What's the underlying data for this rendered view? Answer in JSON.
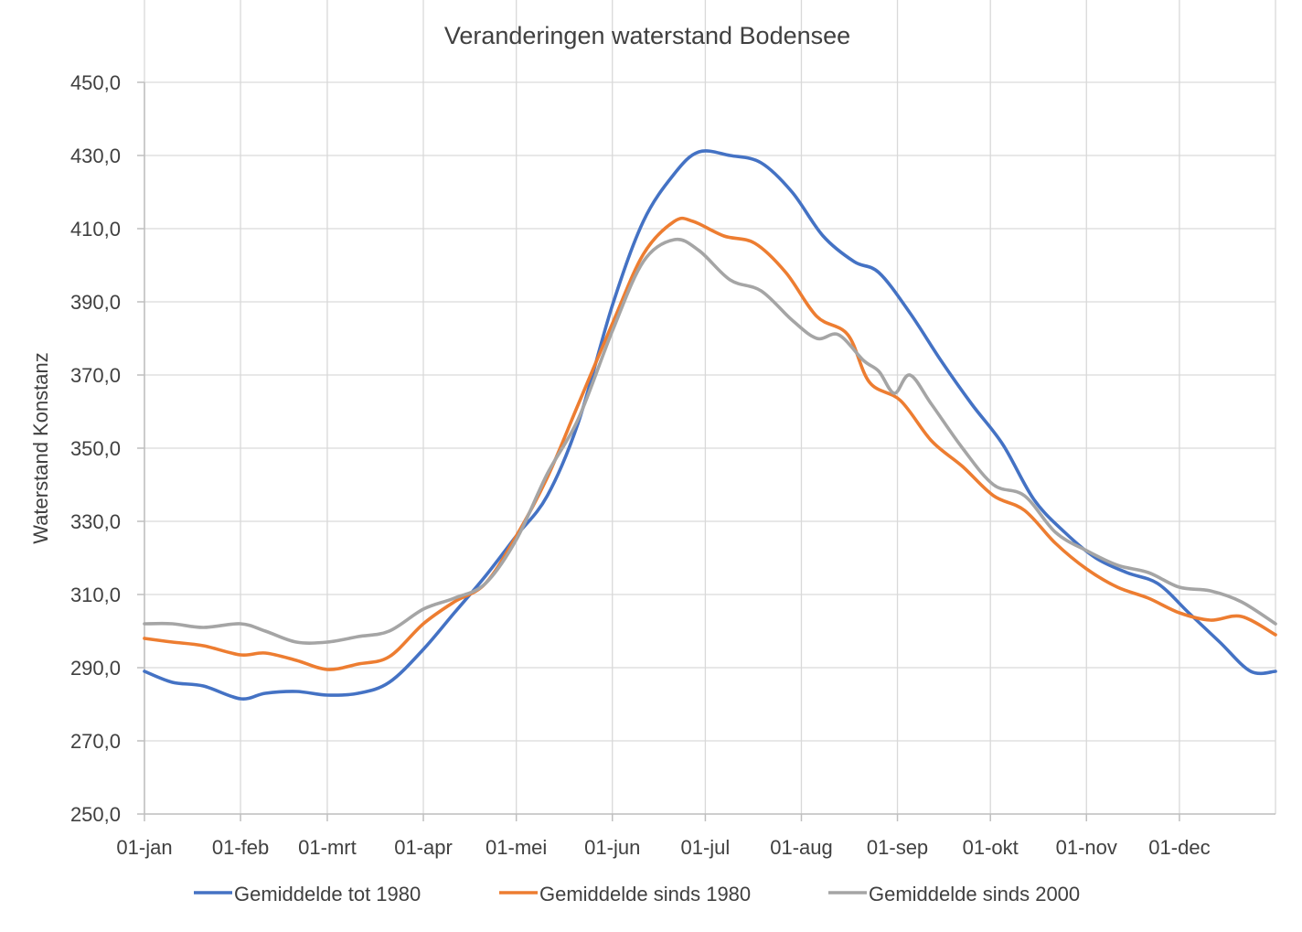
{
  "chart_data": {
    "type": "line",
    "title": "Veranderingen waterstand Bodensee",
    "xlabel": "",
    "ylabel": "Waterstand Konstanz",
    "x_unit": "day of year",
    "xlim": [
      1,
      366
    ],
    "ylim": [
      250,
      450
    ],
    "y_ticks": [
      "250,0",
      "270,0",
      "290,0",
      "310,0",
      "330,0",
      "350,0",
      "370,0",
      "390,0",
      "410,0",
      "430,0",
      "450,0"
    ],
    "x_ticks": [
      {
        "day": 1,
        "label": "01-jan"
      },
      {
        "day": 32,
        "label": "01-feb"
      },
      {
        "day": 60,
        "label": "01-mrt"
      },
      {
        "day": 91,
        "label": "01-apr"
      },
      {
        "day": 121,
        "label": "01-mei"
      },
      {
        "day": 152,
        "label": "01-jun"
      },
      {
        "day": 182,
        "label": "01-jul"
      },
      {
        "day": 213,
        "label": "01-aug"
      },
      {
        "day": 244,
        "label": "01-sep"
      },
      {
        "day": 274,
        "label": "01-okt"
      },
      {
        "day": 305,
        "label": "01-nov"
      },
      {
        "day": 335,
        "label": "01-dec"
      }
    ],
    "grid": true,
    "legend_position": "bottom",
    "series": [
      {
        "name": "Gemiddelde tot 1980",
        "color": "#4472C4",
        "points": [
          [
            1,
            289
          ],
          [
            10,
            286
          ],
          [
            20,
            285
          ],
          [
            32,
            281.5
          ],
          [
            40,
            283
          ],
          [
            50,
            283.5
          ],
          [
            60,
            282.5
          ],
          [
            70,
            283
          ],
          [
            80,
            286
          ],
          [
            91,
            295
          ],
          [
            101,
            305
          ],
          [
            111,
            315
          ],
          [
            121,
            326
          ],
          [
            131,
            337
          ],
          [
            141,
            357
          ],
          [
            152,
            389
          ],
          [
            162,
            412
          ],
          [
            172,
            425
          ],
          [
            180,
            431
          ],
          [
            190,
            430
          ],
          [
            200,
            428
          ],
          [
            210,
            420
          ],
          [
            220,
            408
          ],
          [
            230,
            401
          ],
          [
            238,
            398
          ],
          [
            248,
            387
          ],
          [
            258,
            374
          ],
          [
            268,
            362
          ],
          [
            278,
            351
          ],
          [
            288,
            336
          ],
          [
            298,
            327
          ],
          [
            308,
            320
          ],
          [
            318,
            316
          ],
          [
            328,
            313
          ],
          [
            338,
            305
          ],
          [
            348,
            297
          ],
          [
            358,
            289
          ],
          [
            366,
            289
          ]
        ]
      },
      {
        "name": "Gemiddelde sinds 1980",
        "color": "#ED7D31",
        "points": [
          [
            1,
            298
          ],
          [
            10,
            297
          ],
          [
            20,
            296
          ],
          [
            32,
            293.5
          ],
          [
            40,
            294
          ],
          [
            50,
            292
          ],
          [
            60,
            289.5
          ],
          [
            70,
            291
          ],
          [
            80,
            293
          ],
          [
            91,
            302
          ],
          [
            101,
            308
          ],
          [
            111,
            313
          ],
          [
            121,
            326
          ],
          [
            131,
            342
          ],
          [
            141,
            362
          ],
          [
            152,
            384
          ],
          [
            162,
            403
          ],
          [
            172,
            412
          ],
          [
            178,
            412
          ],
          [
            188,
            408
          ],
          [
            198,
            406
          ],
          [
            208,
            398
          ],
          [
            218,
            386
          ],
          [
            228,
            381
          ],
          [
            235,
            368
          ],
          [
            245,
            363
          ],
          [
            255,
            352
          ],
          [
            265,
            345
          ],
          [
            275,
            337
          ],
          [
            285,
            333
          ],
          [
            295,
            324
          ],
          [
            305,
            317
          ],
          [
            315,
            312
          ],
          [
            325,
            309
          ],
          [
            335,
            305
          ],
          [
            345,
            303
          ],
          [
            355,
            304
          ],
          [
            366,
            299
          ]
        ]
      },
      {
        "name": "Gemiddelde sinds 2000",
        "color": "#A5A5A5",
        "points": [
          [
            1,
            302
          ],
          [
            10,
            302
          ],
          [
            20,
            301
          ],
          [
            32,
            302
          ],
          [
            40,
            300
          ],
          [
            50,
            297
          ],
          [
            60,
            297
          ],
          [
            70,
            298.5
          ],
          [
            80,
            300
          ],
          [
            91,
            306
          ],
          [
            101,
            309
          ],
          [
            111,
            313
          ],
          [
            121,
            325
          ],
          [
            131,
            343
          ],
          [
            141,
            358
          ],
          [
            152,
            382
          ],
          [
            162,
            401
          ],
          [
            172,
            407
          ],
          [
            180,
            404
          ],
          [
            190,
            396
          ],
          [
            200,
            393
          ],
          [
            210,
            385
          ],
          [
            218,
            380
          ],
          [
            225,
            381
          ],
          [
            233,
            374
          ],
          [
            238,
            371
          ],
          [
            243,
            365
          ],
          [
            248,
            370
          ],
          [
            255,
            362
          ],
          [
            265,
            350
          ],
          [
            275,
            340
          ],
          [
            285,
            337
          ],
          [
            295,
            327
          ],
          [
            305,
            322
          ],
          [
            315,
            318
          ],
          [
            325,
            316
          ],
          [
            335,
            312
          ],
          [
            345,
            311
          ],
          [
            355,
            308
          ],
          [
            366,
            302
          ]
        ]
      }
    ]
  }
}
